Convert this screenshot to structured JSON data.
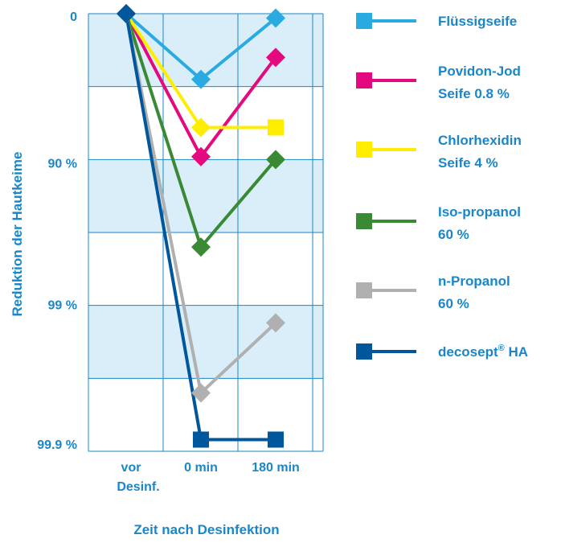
{
  "chart_data": {
    "type": "line",
    "ylabel": "Reduktion der Hautkeime",
    "xlabel": "Zeit nach Desinfektion",
    "categories": [
      {
        "lines": [
          "vor",
          "Desinf."
        ]
      },
      {
        "lines": [
          "0 min"
        ]
      },
      {
        "lines": [
          "180 min"
        ]
      }
    ],
    "y_ticks": [
      {
        "label": "0",
        "value": 0
      },
      {
        "label": "90 %",
        "value": 1
      },
      {
        "label": "99 %",
        "value": 2
      },
      {
        "label": "99.9 %",
        "value": 3
      }
    ],
    "y_scale": "log reduction",
    "ylim": [
      0,
      3
    ],
    "grid": true,
    "legend_position": "right",
    "series": [
      {
        "name_lines": [
          "Flüssigseife"
        ],
        "color": "#29abe2",
        "marker": "diamond",
        "values": [
          0,
          0.45,
          0.03
        ],
        "markers": [
          "diamond",
          "diamond",
          "diamond"
        ]
      },
      {
        "name_lines": [
          "Povidon-Jod",
          "Seife 0.8 %"
        ],
        "color": "#e5097f",
        "marker": "diamond",
        "values": [
          0,
          0.98,
          0.3
        ],
        "markers": [
          "diamond",
          "diamond",
          "diamond"
        ]
      },
      {
        "name_lines": [
          "Chlorhexidin",
          "Seife 4 %"
        ],
        "color": "#ffed00",
        "marker": "diamond",
        "values": [
          0,
          0.78,
          0.78
        ],
        "markers": [
          "diamond",
          "diamond",
          "square"
        ]
      },
      {
        "name_lines": [
          "Iso-propanol",
          "60 %"
        ],
        "color": "#3a8a35",
        "marker": "diamond",
        "values": [
          0,
          1.6,
          1.0
        ],
        "markers": [
          "diamond",
          "diamond",
          "diamond"
        ]
      },
      {
        "name_lines": [
          "n-Propanol",
          "60 %"
        ],
        "color": "#b0b0b0",
        "marker": "diamond",
        "values": [
          0,
          2.6,
          2.12
        ],
        "markers": [
          "diamond",
          "diamond",
          "diamond"
        ]
      },
      {
        "name_lines": [
          "decosept",
          "HA"
        ],
        "name_sup": "®",
        "color": "#00579c",
        "marker": "square",
        "values": [
          0,
          2.92,
          2.92
        ],
        "markers": [
          "diamond",
          "square",
          "square"
        ]
      }
    ],
    "plot_background": "#d9eef8",
    "grid_color": "#1a86c8",
    "label_color": "#1a86c8"
  }
}
